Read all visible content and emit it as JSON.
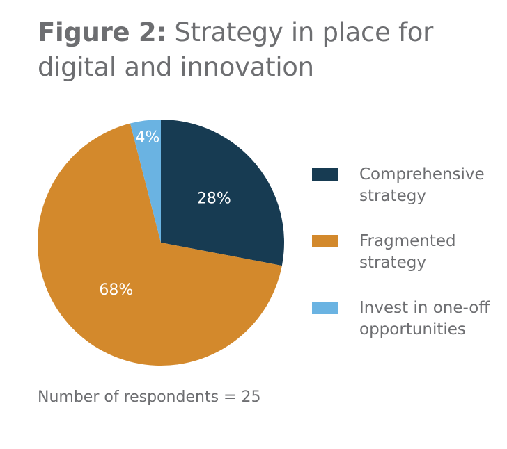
{
  "title": {
    "figure_label": "Figure 2:",
    "text": "Strategy in place for digital and innovation"
  },
  "footnote": "Number of respondents = 25",
  "chart_data": {
    "type": "pie",
    "title": "Figure 2: Strategy in place for digital and innovation",
    "categories": [
      "Comprehensive strategy",
      "Fragmented strategy",
      "Invest in one-off opportunities"
    ],
    "values": [
      28,
      68,
      4
    ],
    "data_labels": [
      "28%",
      "68%",
      "4%"
    ],
    "colors": [
      "#173b52",
      "#d3892c",
      "#6ab3e2"
    ],
    "label_color": "#ffffff",
    "start_angle_deg": 0,
    "direction": "clockwise",
    "legend_position": "right"
  },
  "legend": [
    {
      "label": "Comprehensive strategy",
      "color": "#173b52"
    },
    {
      "label": "Fragmented strategy",
      "color": "#d3892c"
    },
    {
      "label": "Invest in one-off opportunities",
      "color": "#6ab3e2"
    }
  ]
}
